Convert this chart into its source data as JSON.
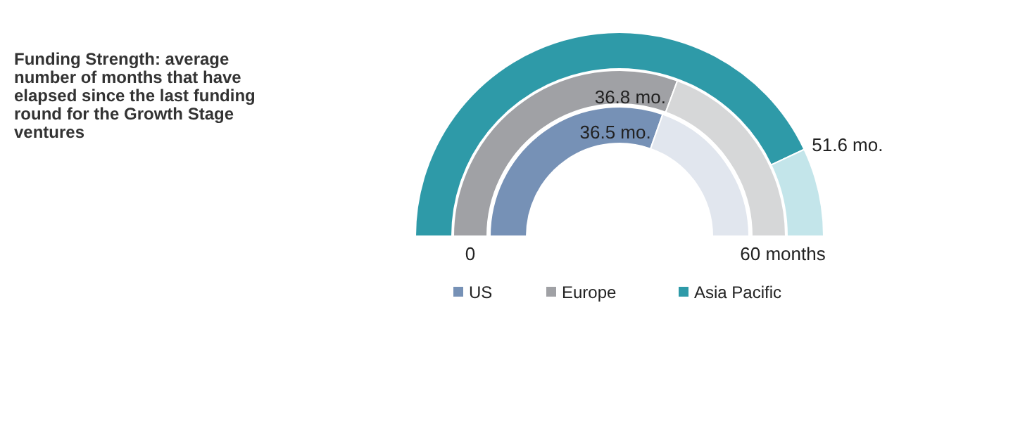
{
  "chart_data": {
    "type": "donut",
    "title": "Funding Strength: average number of months that have elapsed since the last funding round for the Growth Stage ventures",
    "categories": [
      null,
      null
    ],
    "series": [
      {
        "name": "US",
        "colors": [
          "#7691b6",
          "#e1e6ee"
        ],
        "values": [
          36.5,
          23.5
        ],
        "value_labels": [
          "36.5 mo.",
          null
        ]
      },
      {
        "name": "Europe",
        "colors": [
          "#a0a1a5",
          "#d6d7d8"
        ],
        "values": [
          36.8,
          23.2
        ],
        "value_labels": [
          "36.8 mo.",
          null
        ]
      },
      {
        "name": "Asia Pacific",
        "colors": [
          "#2e9aa8",
          "#c3e5ea"
        ],
        "values": [
          51.6,
          8.4
        ],
        "value_labels": [
          "51.6 mo.",
          null
        ]
      }
    ],
    "annotations": [
      "0",
      "60 months"
    ],
    "legend": "bottom"
  }
}
